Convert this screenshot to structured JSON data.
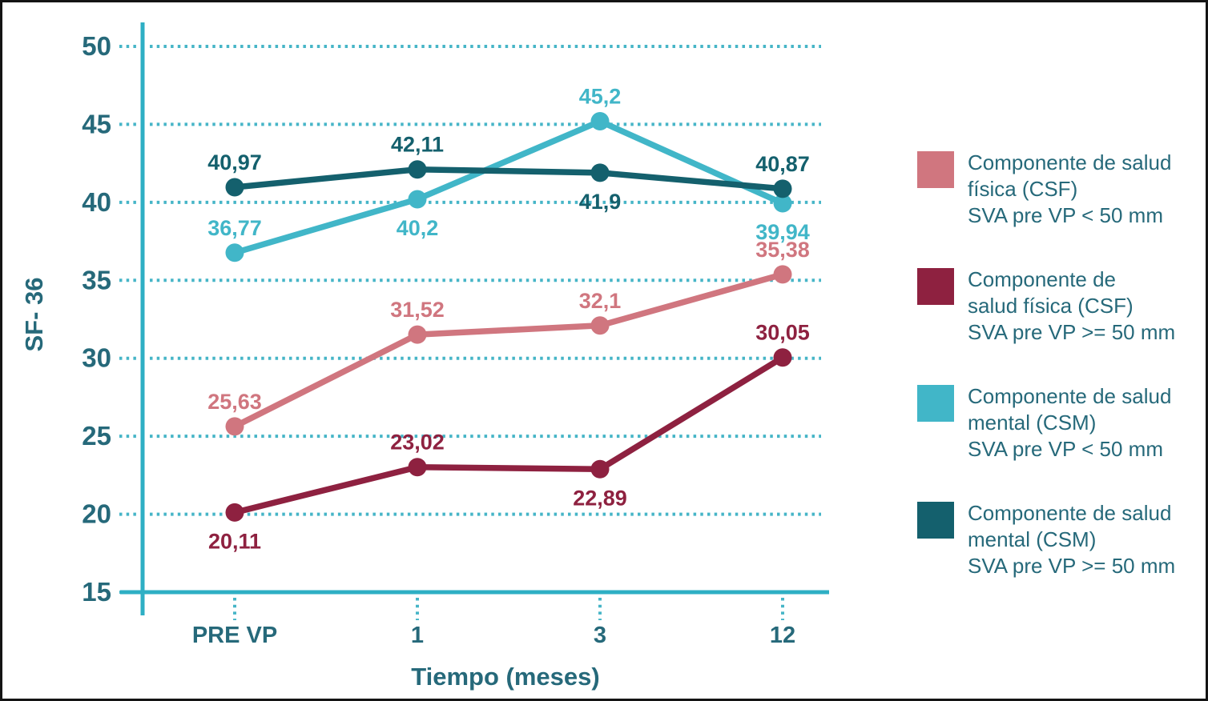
{
  "chart_data": {
    "type": "line",
    "title": "",
    "xlabel": "Tiempo (meses)",
    "ylabel": "SF- 36",
    "categories": [
      "PRE VP",
      "1",
      "3",
      "12"
    ],
    "ylim": [
      15,
      50
    ],
    "yticks": [
      15,
      20,
      25,
      30,
      35,
      40,
      45,
      50
    ],
    "grid": "horizontal dotted",
    "legend_position": "right",
    "colors": {
      "axis": "#2eafc4",
      "grid": "#46b5c7",
      "text": "#26697a",
      "frame": "#141414",
      "background": "#ffffff"
    },
    "series": [
      {
        "name": "Componente de salud física (CSF) SVA pre VP < 50 mm",
        "legend_lines": [
          "Componente de salud",
          "física (CSF)",
          "SVA pre VP < 50 mm"
        ],
        "color": "#d0767f",
        "values": [
          25.63,
          31.52,
          32.1,
          35.38
        ],
        "labels": [
          "25,63",
          "31,52",
          "32,1",
          "35,38"
        ],
        "label_positions": [
          "above",
          "above",
          "above",
          "above"
        ]
      },
      {
        "name": "Componente de salud física (CSF) SVA pre VP >= 50 mm",
        "legend_lines": [
          "Componente de",
          "salud física (CSF)",
          "SVA pre VP >= 50 mm"
        ],
        "color": "#8e2140",
        "values": [
          20.11,
          23.02,
          22.89,
          30.05
        ],
        "labels": [
          "20,11",
          "23,02",
          "22,89",
          "30,05"
        ],
        "label_positions": [
          "below",
          "above",
          "below",
          "above"
        ]
      },
      {
        "name": "Componente de salud mental (CSM) SVA pre VP < 50 mm",
        "legend_lines": [
          "Componente de salud",
          "mental (CSM)",
          "SVA pre VP < 50 mm"
        ],
        "color": "#41b6c8",
        "values": [
          36.77,
          40.2,
          45.2,
          39.94
        ],
        "labels": [
          "36,77",
          "40,2",
          "45,2",
          "39,94"
        ],
        "label_positions": [
          "above",
          "below",
          "above",
          "below"
        ]
      },
      {
        "name": "Componente de salud mental (CSM) SVA pre VP >= 50 mm",
        "legend_lines": [
          "Componente de salud",
          "mental (CSM)",
          "SVA pre VP >= 50 mm"
        ],
        "color": "#14606d",
        "values": [
          40.97,
          42.11,
          41.9,
          40.87
        ],
        "labels": [
          "40,97",
          "42,11",
          "41,9",
          "40,87"
        ],
        "label_positions": [
          "above",
          "above",
          "below",
          "above"
        ]
      }
    ]
  }
}
